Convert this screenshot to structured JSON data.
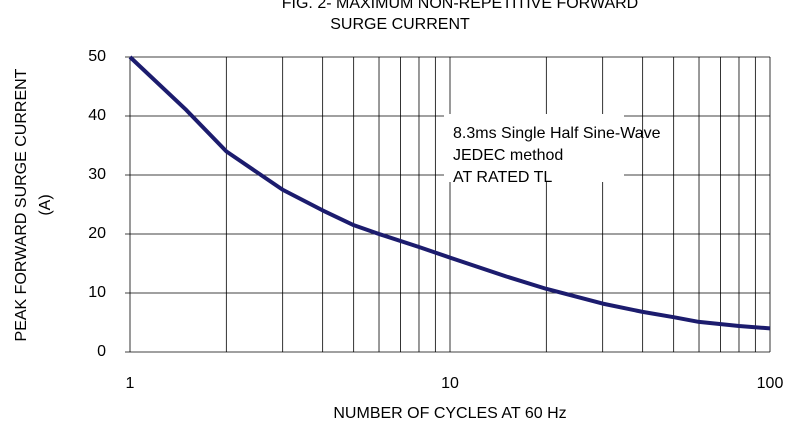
{
  "chart_data": {
    "type": "line",
    "title": [
      "FIG. 2- MAXIMUM NON-REPETITIVE FORWARD",
      "SURGE CURRENT"
    ],
    "ylabel": [
      "PEAK FORWARD SURGE CURRENT",
      "(A)"
    ],
    "xlabel": "NUMBER OF CYCLES AT 60 Hz",
    "annotation": [
      "8.3ms Single Half Sine-Wave",
      "JEDEC method",
      "AT RATED TL"
    ],
    "xscale": "log",
    "xlim": [
      1,
      100
    ],
    "xticks": [
      1,
      10,
      100
    ],
    "xgrid": [
      2,
      3,
      4,
      5,
      6,
      7,
      8,
      9,
      20,
      30,
      40,
      50,
      60,
      70,
      80,
      90
    ],
    "ylim": [
      0,
      50
    ],
    "yticks": [
      0,
      10,
      20,
      30,
      40,
      50
    ],
    "grid": true,
    "series": [
      {
        "name": null,
        "color": "#1c1c6e",
        "x": [
          1,
          1.5,
          2,
          3,
          4,
          5,
          6,
          8,
          10,
          15,
          20,
          30,
          40,
          50,
          60,
          80,
          100
        ],
        "values": [
          50,
          41,
          34,
          27.5,
          24,
          21.5,
          20,
          17.8,
          16,
          12.8,
          10.7,
          8.2,
          6.8,
          5.9,
          5.1,
          4.4,
          4
        ]
      }
    ]
  }
}
